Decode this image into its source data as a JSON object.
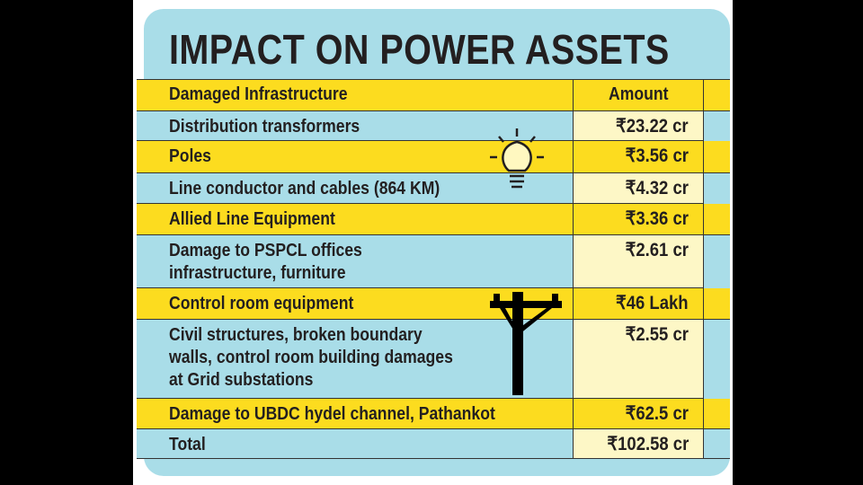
{
  "header": {
    "title": "IMPACT ON POWER ASSETS"
  },
  "table": {
    "columns": [
      "Damaged Infrastructure",
      "Amount"
    ],
    "rows": [
      [
        [
          "Distribution transformers"
        ],
        "₹23.22 cr"
      ],
      [
        [
          "Poles"
        ],
        "₹3.56 cr"
      ],
      [
        [
          "Line conductor and cables (864 KM)"
        ],
        "₹4.32 cr"
      ],
      [
        [
          "Allied Line Equipment"
        ],
        "₹3.36 cr"
      ],
      [
        [
          "Damage to PSPCL offices",
          "infrastructure, furniture"
        ],
        "₹2.61 cr"
      ],
      [
        [
          "Control room equipment"
        ],
        "₹46 Lakh"
      ],
      [
        [
          "Civil structures, broken boundary",
          "walls, control room building damages",
          "at Grid substations"
        ],
        "₹2.55 cr"
      ],
      [
        [
          "Damage to UBDC hydel channel, Pathankot"
        ],
        "₹62.5 cr"
      ],
      [
        [
          "Total"
        ],
        "₹102.58 cr"
      ]
    ]
  }
}
